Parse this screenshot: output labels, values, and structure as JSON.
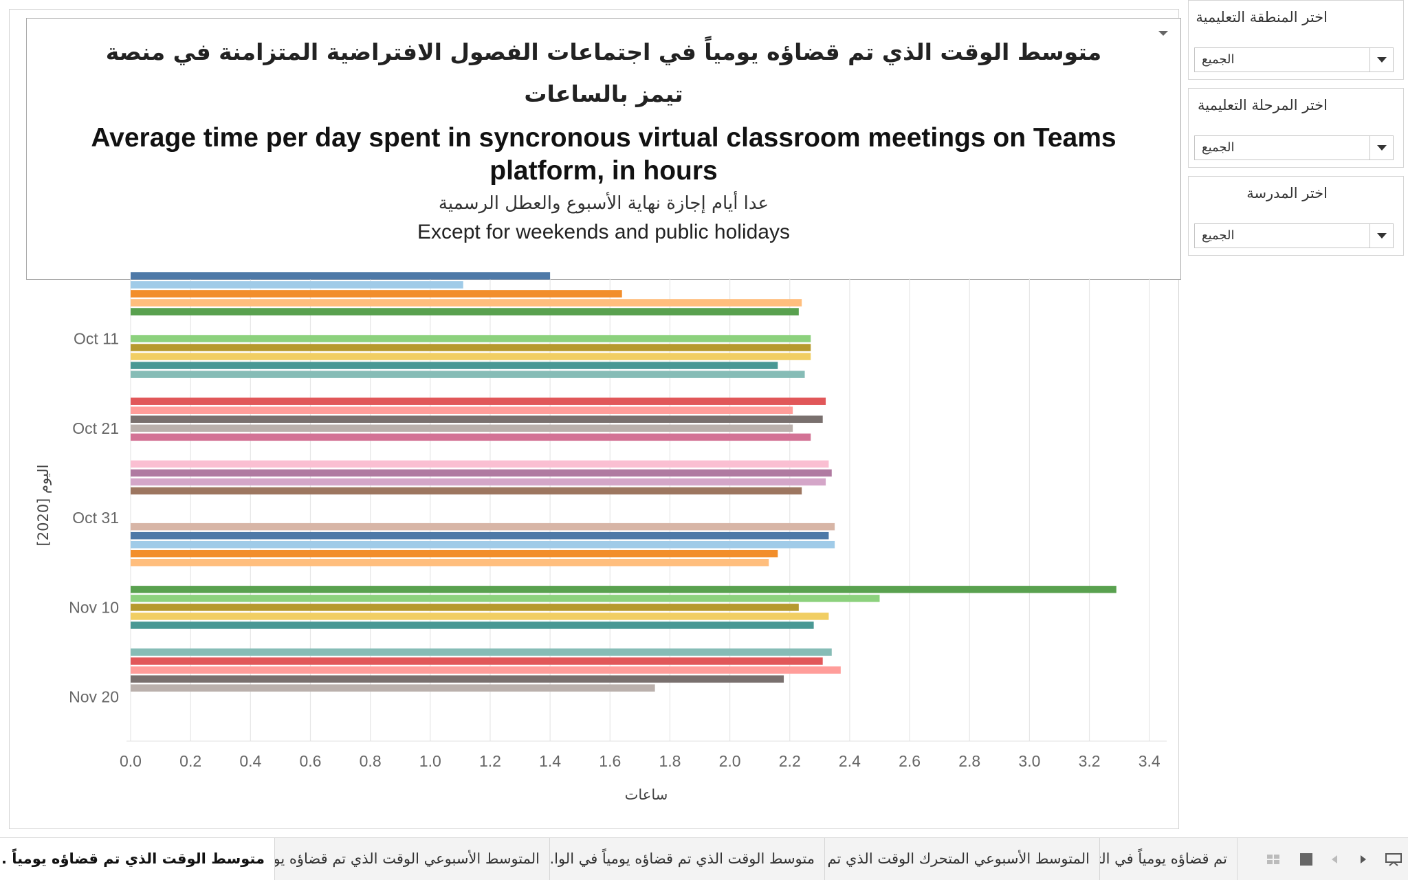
{
  "title": {
    "arabic": "متوسط الوقت الذي تم قضاؤه  يومياً  في اجتماعات الفصول الافتراضية  المتزامنة في منصة تيمز بالساعات",
    "english": "Average time per day spent in syncronous virtual classroom meetings on Teams platform, in hours",
    "subtitle_arabic": "عدا أيام إجازة نهاية الأسبوع والعطل الرسمية",
    "subtitle_english": "Except for weekends and public holidays"
  },
  "filters": [
    {
      "label": "اختر المنطقة التعليمية",
      "value": "الجميع"
    },
    {
      "label": "اختر المرحلة التعليمية",
      "value": "الجميع"
    },
    {
      "label": "اختر المدرسة",
      "value": "الجميع"
    }
  ],
  "tabs": [
    {
      "label": "متوسط الوقت الذي تم قضاؤه  يومياً ..."
    },
    {
      "label": "المتوسط الأسبوعي الوقت الذي تم قضاؤه  يو..."
    },
    {
      "label": "متوسط الوقت الذي تم قضاؤه  يومياً  في الوا..."
    },
    {
      "label": "المتوسط الأسبوعي المتحرك  الوقت الذي تم ق..."
    },
    {
      "label": "تم قضاؤه  يومياً  في التر"
    }
  ],
  "chart_data": {
    "type": "bar",
    "orientation": "horizontal",
    "xlabel": "ساعات",
    "ylabel": "اليوم [2020]",
    "xlim": [
      0,
      3.45
    ],
    "xticks": [
      0.0,
      0.2,
      0.4,
      0.6,
      0.8,
      1.0,
      1.2,
      1.4,
      1.6,
      1.8,
      2.0,
      2.2,
      2.4,
      2.6,
      2.8,
      3.0,
      3.2,
      3.4
    ],
    "ytick_labels": [
      {
        "label": "Oct 11",
        "date_index": 11
      },
      {
        "label": "Oct 21",
        "date_index": 21
      },
      {
        "label": "Oct 31",
        "date_index": 31
      },
      {
        "label": "Nov 10",
        "date_index": 41
      },
      {
        "label": "Nov 20",
        "date_index": 51
      }
    ],
    "grid": "vertical",
    "bars": [
      {
        "date": "2020-10-04",
        "value": 1.4,
        "color": "#4e79a7"
      },
      {
        "date": "2020-10-05",
        "value": 1.11,
        "color": "#a0cbe8"
      },
      {
        "date": "2020-10-06",
        "value": 1.64,
        "color": "#f28e2b"
      },
      {
        "date": "2020-10-07",
        "value": 2.24,
        "color": "#ffbe7d"
      },
      {
        "date": "2020-10-08",
        "value": 2.23,
        "color": "#59a14f"
      },
      {
        "date": "2020-10-11",
        "value": 2.27,
        "color": "#8cd17d"
      },
      {
        "date": "2020-10-12",
        "value": 2.27,
        "color": "#b6992d"
      },
      {
        "date": "2020-10-13",
        "value": 2.27,
        "color": "#f1ce63"
      },
      {
        "date": "2020-10-14",
        "value": 2.16,
        "color": "#499894"
      },
      {
        "date": "2020-10-15",
        "value": 2.25,
        "color": "#86bcb6"
      },
      {
        "date": "2020-10-18",
        "value": 2.32,
        "color": "#e15759"
      },
      {
        "date": "2020-10-19",
        "value": 2.21,
        "color": "#ff9d9a"
      },
      {
        "date": "2020-10-20",
        "value": 2.31,
        "color": "#79706e"
      },
      {
        "date": "2020-10-21",
        "value": 2.21,
        "color": "#bab0ac"
      },
      {
        "date": "2020-10-22",
        "value": 2.27,
        "color": "#d37295"
      },
      {
        "date": "2020-10-25",
        "value": 2.33,
        "color": "#fabfd2"
      },
      {
        "date": "2020-10-26",
        "value": 2.34,
        "color": "#b07aa1"
      },
      {
        "date": "2020-10-27",
        "value": 2.32,
        "color": "#d4a6c8"
      },
      {
        "date": "2020-10-28",
        "value": 2.24,
        "color": "#9d7660"
      },
      {
        "date": "2020-11-01",
        "value": 2.35,
        "color": "#d7b5a6"
      },
      {
        "date": "2020-11-02",
        "value": 2.33,
        "color": "#4e79a7"
      },
      {
        "date": "2020-11-03",
        "value": 2.35,
        "color": "#a0cbe8"
      },
      {
        "date": "2020-11-04",
        "value": 2.16,
        "color": "#f28e2b"
      },
      {
        "date": "2020-11-05",
        "value": 2.13,
        "color": "#ffbe7d"
      },
      {
        "date": "2020-11-08",
        "value": 3.29,
        "color": "#59a14f"
      },
      {
        "date": "2020-11-09",
        "value": 2.5,
        "color": "#8cd17d"
      },
      {
        "date": "2020-11-10",
        "value": 2.23,
        "color": "#b6992d"
      },
      {
        "date": "2020-11-11",
        "value": 2.33,
        "color": "#f1ce63"
      },
      {
        "date": "2020-11-12",
        "value": 2.28,
        "color": "#499894"
      },
      {
        "date": "2020-11-15",
        "value": 2.34,
        "color": "#86bcb6"
      },
      {
        "date": "2020-11-16",
        "value": 2.31,
        "color": "#e15759"
      },
      {
        "date": "2020-11-17",
        "value": 2.37,
        "color": "#ff9d9a"
      },
      {
        "date": "2020-11-18",
        "value": 2.18,
        "color": "#79706e"
      },
      {
        "date": "2020-11-19",
        "value": 1.75,
        "color": "#bab0ac"
      }
    ]
  }
}
